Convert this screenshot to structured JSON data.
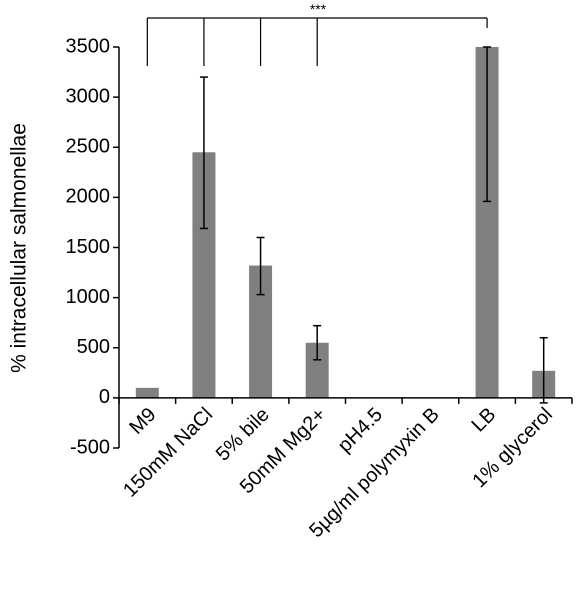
{
  "chart_data": {
    "type": "bar",
    "title": "",
    "xlabel": "",
    "ylabel": "% intracellular salmonellae",
    "ylim": [
      -500,
      3500
    ],
    "yticks": [
      3500,
      3000,
      2500,
      2000,
      1500,
      1000,
      500,
      0,
      -500
    ],
    "grid": false,
    "categories": [
      "M9",
      "150mM NaCl",
      "5% bile",
      "50mM Mg2+",
      "pH4.5",
      "5µg/ml polymyxin B",
      "LB",
      "1% glycerol"
    ],
    "values": [
      100,
      2450,
      1320,
      550,
      0,
      0,
      3500,
      270
    ],
    "error_low": [
      null,
      1690,
      1030,
      380,
      null,
      null,
      1960,
      -50
    ],
    "error_high": [
      null,
      3200,
      1600,
      720,
      null,
      null,
      3500,
      600
    ],
    "bar_color": "#808080",
    "annotations": [
      {
        "text": "***",
        "from_category": "M9",
        "to_categories": [
          "150mM NaCl",
          "5% bile",
          "50mM Mg2+",
          "LB"
        ]
      }
    ]
  }
}
